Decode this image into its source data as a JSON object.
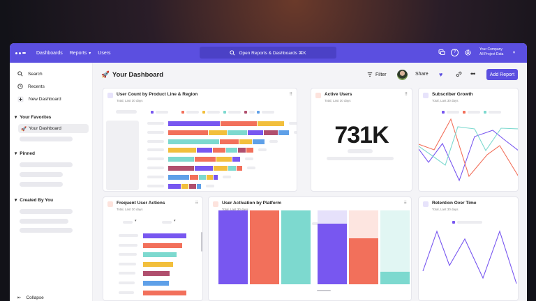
{
  "topbar": {
    "nav": [
      {
        "label": "Dashboards",
        "has_chevron": false
      },
      {
        "label": "Reports",
        "has_chevron": true
      },
      {
        "label": "Users",
        "has_chevron": false
      }
    ],
    "search_label": "Open Reports & Dashboards ⌘K",
    "company_name": "Your Company",
    "project_name": "All Project Data",
    "icons": [
      "notifications-icon",
      "help-icon",
      "settings-icon"
    ]
  },
  "sidebar": {
    "search": "Search",
    "recents": "Recents",
    "new_dashboard": "New Dashboard",
    "favorites_label": "Your Favorites",
    "favorite_item": "Your Dashboard",
    "pinned_label": "Pinned",
    "created_label": "Created By You",
    "collapse": "Collapse"
  },
  "header": {
    "title": "Your Dashboard",
    "title_emoji": "🚀",
    "filter": "Filter",
    "share": "Share",
    "add_report": "Add Report"
  },
  "cards": {
    "user_count": {
      "title": "User Count by Product Line & Region",
      "sub": "Total, Last 30 days"
    },
    "active_users": {
      "title": "Active Users",
      "sub": "Total, Last 30 days",
      "value": "731K"
    },
    "subscriber_growth": {
      "title": "Subscriber Growth",
      "sub": "Total, Last 30 days"
    },
    "frequent_actions": {
      "title": "Frequent User Actions",
      "sub": "Total, Last 30 days"
    },
    "activation": {
      "title": "User Activation by Platform",
      "sub": "Total, Last 30 days"
    },
    "retention": {
      "title": "Retention Over Time",
      "sub": "Total, Last 30 days"
    }
  },
  "colors": {
    "accent": "#5b4fe0",
    "purple": "#7857f0",
    "coral": "#f2705b",
    "teal": "#7dd9cf",
    "yellow": "#f2bf3c",
    "plum": "#b04f6e",
    "blue": "#5fa0e8"
  }
}
